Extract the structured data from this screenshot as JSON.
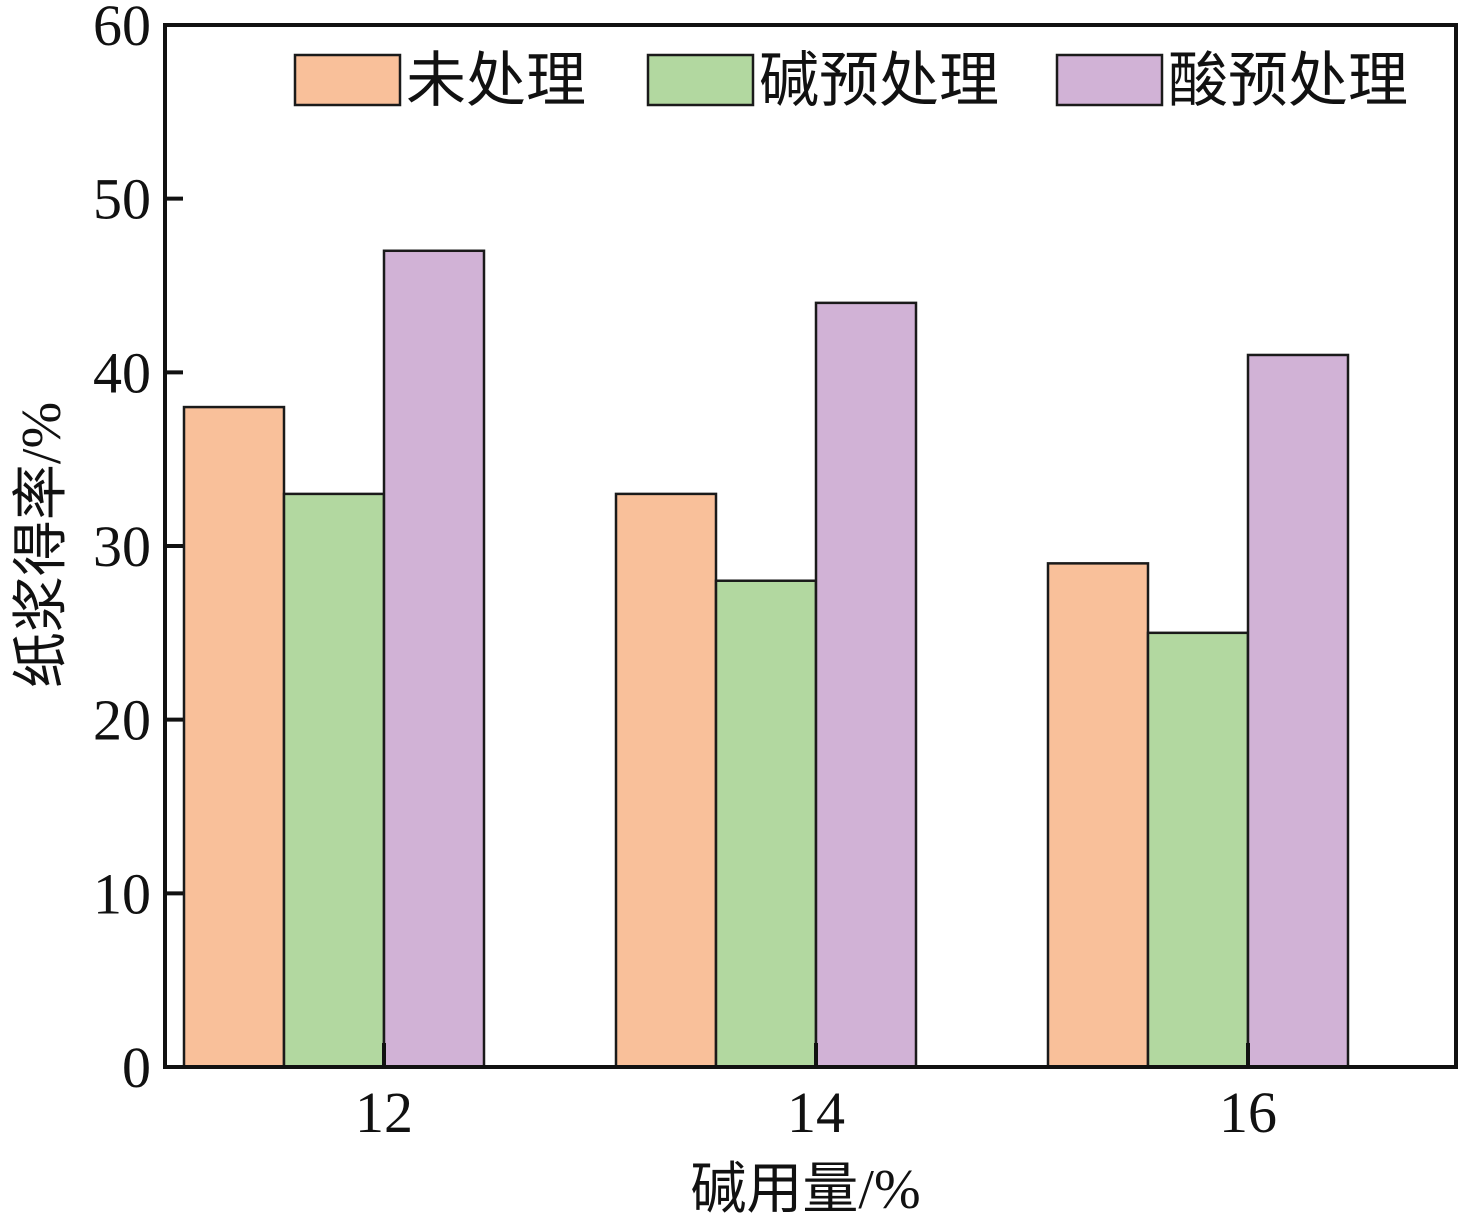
{
  "chart_data": {
    "type": "bar",
    "categories": [
      "12",
      "14",
      "16"
    ],
    "series": [
      {
        "name": "未处理",
        "values": [
          38,
          33,
          29
        ]
      },
      {
        "name": "碱预处理",
        "values": [
          33,
          28,
          25
        ]
      },
      {
        "name": "酸预处理",
        "values": [
          47,
          44,
          41
        ]
      }
    ],
    "xlabel": "碱用量/%",
    "ylabel": "纸浆得率/%",
    "ylim": [
      0,
      60
    ],
    "yticks": [
      0,
      10,
      20,
      30,
      40,
      50,
      60
    ],
    "grid": false,
    "legend_position": "top-right",
    "colors": [
      "#f9c09a",
      "#b2d8a0",
      "#d1b2d6"
    ],
    "edge_color": "#1a1a1a"
  }
}
